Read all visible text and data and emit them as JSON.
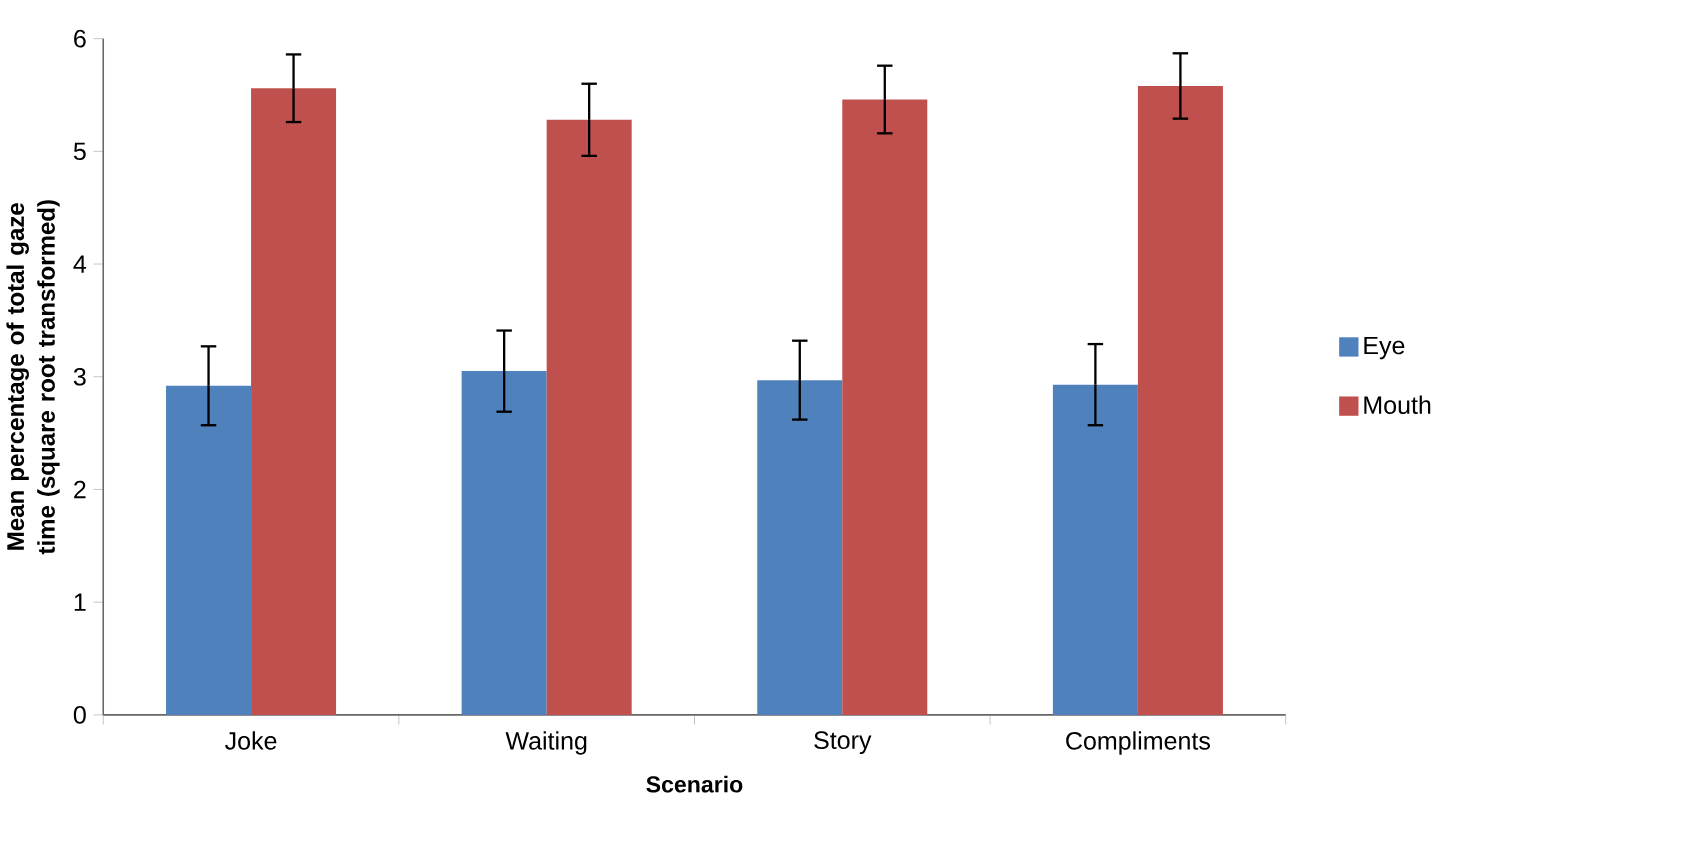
{
  "chart_data": {
    "type": "bar",
    "xlabel": "Scenario",
    "ylabel": "Mean percentage of total gaze time (square root transformed)",
    "categories": [
      "Joke",
      "Waiting",
      "Story",
      "Compliments"
    ],
    "series": [
      {
        "name": "Eye",
        "color": "#4f81bd",
        "values": [
          2.92,
          3.05,
          2.97,
          2.93
        ],
        "errors": [
          0.35,
          0.36,
          0.35,
          0.36
        ]
      },
      {
        "name": "Mouth",
        "color": "#c0504d",
        "values": [
          5.56,
          5.28,
          5.46,
          5.58
        ],
        "errors": [
          0.3,
          0.32,
          0.3,
          0.29
        ]
      }
    ],
    "ylim": [
      0,
      6
    ],
    "yticks": [
      0,
      1,
      2,
      3,
      4,
      5,
      6
    ],
    "legend": "right",
    "grid": false
  }
}
